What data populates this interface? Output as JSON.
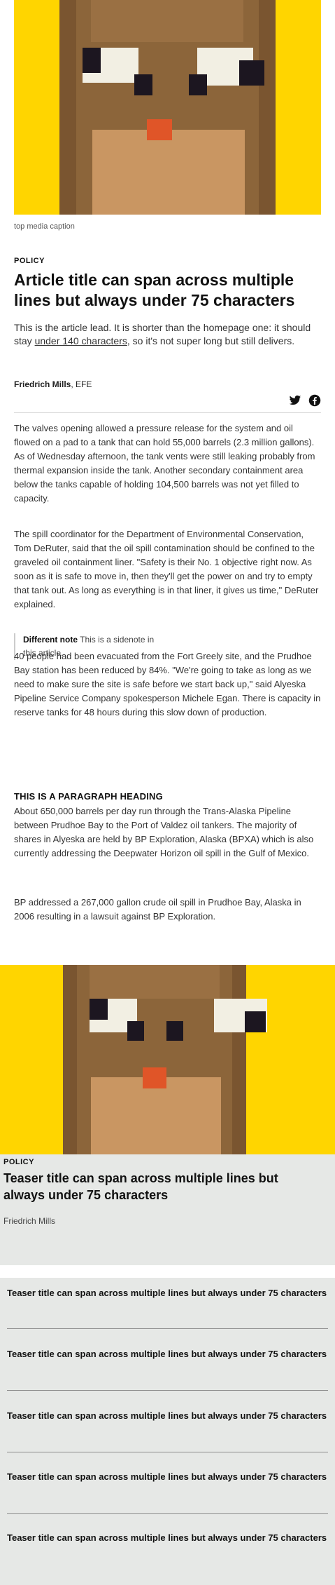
{
  "top_media": {
    "caption": "top media caption",
    "colors": {
      "background": "#ffd500",
      "fur": "#8c653a",
      "muzzle": "#c99662",
      "eye_white": "#f2efe3",
      "pupil": "#1c1620",
      "nose": "#e05528"
    }
  },
  "article": {
    "section": "POLICY",
    "title": "Article title can span across multiple lines but always under 75 characters",
    "lead_before": "This is the article lead. It is shorter than the homepage one: it should stay ",
    "lead_link": "under 140 characters",
    "lead_after": ", so it's not super long but still delivers.",
    "author": "Friedrich Mills",
    "agency": ", EFE",
    "share": {
      "twitter_icon": "twitter-icon",
      "facebook_icon": "facebook-icon"
    },
    "paragraphs": [
      "The valves opening allowed a pressure release for the system and oil flowed on a pad to a tank that can hold 55,000 barrels (2.3 million gallons). As of Wednesday afternoon, the tank vents were still leaking probably from thermal expansion inside the tank. Another secondary containment area below the tanks capable of holding 104,500 barrels was not yet filled to capacity.",
      "The spill coordinator for the Department of Environmental Conservation, Tom DeRuter, said that the oil spill contamination should be confined to the graveled oil containment liner. \"Safety is their No. 1 objective right now. As soon as it is safe to move in, then they'll get the power on and try to empty that tank out. As long as everything is in that liner, it gives us time,\" DeRuter explained.",
      "40 people had been evacuated from the Fort Greely site, and the Prudhoe Bay station has been reduced by 84%. \"We're going to take as long as we need to make sure the site is safe before we start back up,\" said Alyeska Pipeline Service Company spokesperson Michele Egan. There is capacity in reserve tanks for 48 hours during this slow down of production.",
      "About 650,000 barrels per day run through the Trans-Alaska Pipeline between Prudhoe Bay to the Port of Valdez oil tankers. The majority of shares in Alyeska are held by BP Exploration, Alaska (BPXA) which is also currently addressing the Deepwater Horizon oil spill in the Gulf of Mexico.",
      "BP addressed a 267,000 gallon crude oil spill in Prudhoe Bay, Alaska in 2006 resulting in a lawsuit against BP Exploration."
    ],
    "note": {
      "label": "Different note",
      "text": " This is a sidenote in this article."
    },
    "paragraph_heading": "THIS IS A PARAGRAPH HEADING"
  },
  "teaser_card": {
    "section": "POLICY",
    "title": "Teaser title can span across multiple lines but always under 75 characters",
    "author": "Friedrich Mills"
  },
  "teaser_list": {
    "items": [
      "Teaser title can span across multiple lines but always under 75 characters",
      "Teaser title can span across multiple lines but always under 75 characters",
      "Teaser title can span across multiple lines but always under 75 characters",
      "Teaser title can span across multiple lines but always under 75 characters",
      "Teaser title can span across multiple lines but always under 75 characters"
    ]
  }
}
